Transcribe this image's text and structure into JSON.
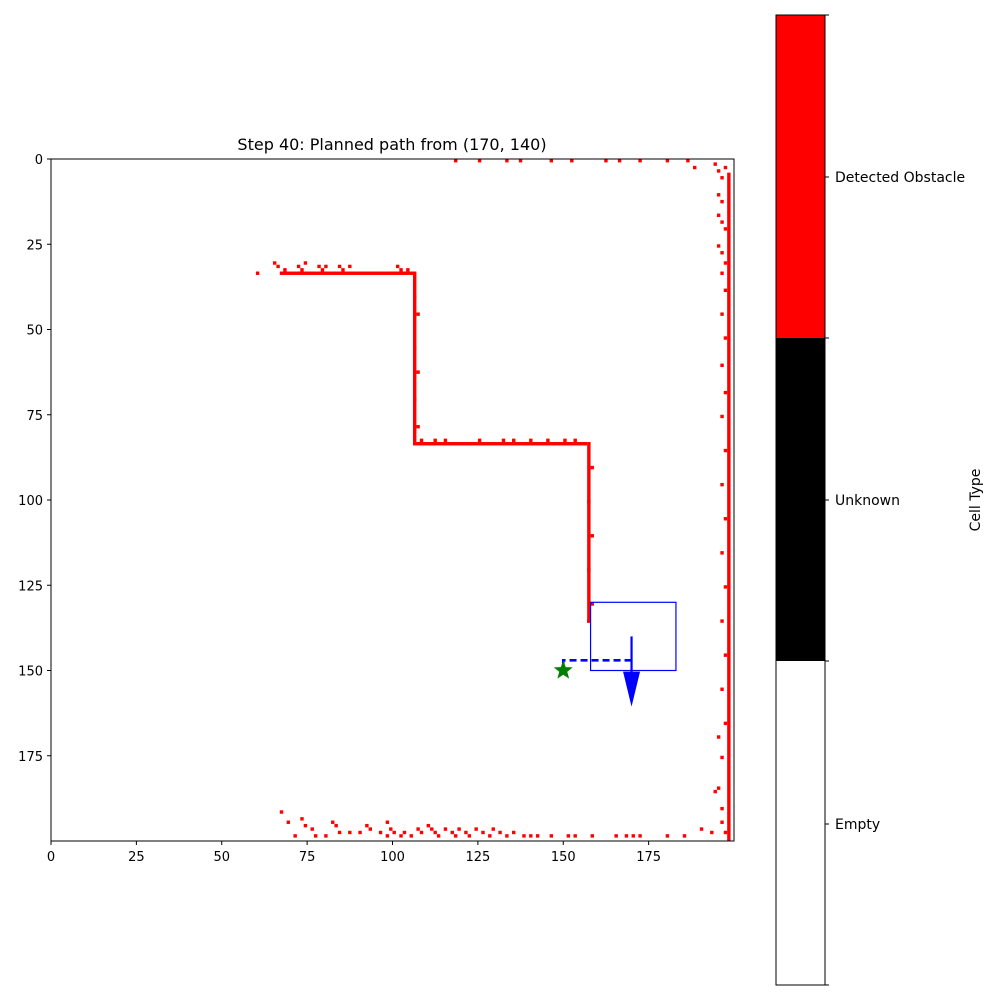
{
  "chart_data": {
    "type": "heatmap",
    "title": "Step 40: Planned path from (170, 140)",
    "xlim": [
      0,
      200
    ],
    "ylim": [
      200,
      0
    ],
    "x_ticks": [
      0,
      25,
      50,
      75,
      100,
      125,
      150,
      175
    ],
    "y_ticks": [
      0,
      25,
      50,
      75,
      100,
      125,
      150,
      175
    ],
    "grid": false,
    "colormap": {
      "label": "Cell Type",
      "categories": [
        {
          "name": "Empty",
          "color": "#ffffff"
        },
        {
          "name": "Unknown",
          "color": "#000000"
        },
        {
          "name": "Detected Obstacle",
          "color": "#ff0000"
        }
      ]
    },
    "obstacle_segments": [
      {
        "x1": 67,
        "y1": 33,
        "x2": 106,
        "y2": 33
      },
      {
        "x1": 106,
        "y1": 33,
        "x2": 106,
        "y2": 83
      },
      {
        "x1": 106,
        "y1": 83,
        "x2": 157,
        "y2": 83
      },
      {
        "x1": 157,
        "y1": 83,
        "x2": 157,
        "y2": 136
      },
      {
        "x1": 198,
        "y1": 4,
        "x2": 198,
        "y2": 200
      }
    ],
    "obstacle_points": [
      [
        60,
        33
      ],
      [
        65,
        30
      ],
      [
        66,
        31
      ],
      [
        68,
        32
      ],
      [
        72,
        31
      ],
      [
        73,
        32
      ],
      [
        74,
        30
      ],
      [
        78,
        31
      ],
      [
        79,
        32
      ],
      [
        80,
        31
      ],
      [
        84,
        31
      ],
      [
        85,
        32
      ],
      [
        87,
        31
      ],
      [
        101,
        31
      ],
      [
        102,
        32
      ],
      [
        104,
        32
      ],
      [
        106,
        40
      ],
      [
        107,
        45
      ],
      [
        106,
        55
      ],
      [
        107,
        62
      ],
      [
        106,
        70
      ],
      [
        107,
        78
      ],
      [
        108,
        82
      ],
      [
        112,
        82
      ],
      [
        115,
        82
      ],
      [
        125,
        82
      ],
      [
        132,
        82
      ],
      [
        135,
        82
      ],
      [
        140,
        82
      ],
      [
        145,
        82
      ],
      [
        150,
        82
      ],
      [
        153,
        82
      ],
      [
        158,
        90
      ],
      [
        157,
        100
      ],
      [
        158,
        110
      ],
      [
        157,
        120
      ],
      [
        158,
        130
      ],
      [
        157,
        135
      ],
      [
        118,
        0
      ],
      [
        125,
        0
      ],
      [
        133,
        0
      ],
      [
        137,
        0
      ],
      [
        146,
        0
      ],
      [
        152,
        0
      ],
      [
        162,
        0
      ],
      [
        166,
        0
      ],
      [
        172,
        0
      ],
      [
        180,
        0
      ],
      [
        186,
        0
      ],
      [
        188,
        2
      ],
      [
        194,
        1
      ],
      [
        195,
        3
      ],
      [
        196,
        5
      ],
      [
        197,
        2
      ],
      [
        195,
        10
      ],
      [
        196,
        12
      ],
      [
        195,
        16
      ],
      [
        196,
        18
      ],
      [
        197,
        20
      ],
      [
        195,
        25
      ],
      [
        196,
        27
      ],
      [
        197,
        30
      ],
      [
        196,
        33
      ],
      [
        197,
        38
      ],
      [
        196,
        45
      ],
      [
        197,
        52
      ],
      [
        196,
        60
      ],
      [
        197,
        68
      ],
      [
        196,
        75
      ],
      [
        197,
        85
      ],
      [
        196,
        95
      ],
      [
        197,
        105
      ],
      [
        196,
        115
      ],
      [
        197,
        125
      ],
      [
        196,
        135
      ],
      [
        197,
        145
      ],
      [
        196,
        155
      ],
      [
        197,
        165
      ],
      [
        195,
        169
      ],
      [
        196,
        175
      ],
      [
        195,
        184
      ],
      [
        194,
        185
      ],
      [
        196,
        190
      ],
      [
        196,
        194
      ],
      [
        197,
        197
      ],
      [
        193,
        197
      ],
      [
        190,
        196
      ],
      [
        67,
        191
      ],
      [
        69,
        194
      ],
      [
        71,
        198
      ],
      [
        73,
        193
      ],
      [
        74,
        195
      ],
      [
        76,
        196
      ],
      [
        77,
        198
      ],
      [
        80,
        198
      ],
      [
        82,
        194
      ],
      [
        83,
        195
      ],
      [
        84,
        197
      ],
      [
        87,
        197
      ],
      [
        90,
        197
      ],
      [
        92,
        195
      ],
      [
        93,
        196
      ],
      [
        96,
        197
      ],
      [
        98,
        198
      ],
      [
        98,
        194
      ],
      [
        99,
        196
      ],
      [
        100,
        197
      ],
      [
        102,
        198
      ],
      [
        103,
        197
      ],
      [
        105,
        198
      ],
      [
        107,
        196
      ],
      [
        108,
        197
      ],
      [
        110,
        195
      ],
      [
        111,
        196
      ],
      [
        112,
        197
      ],
      [
        113,
        198
      ],
      [
        115,
        196
      ],
      [
        117,
        197
      ],
      [
        118,
        198
      ],
      [
        119,
        196
      ],
      [
        121,
        197
      ],
      [
        122,
        198
      ],
      [
        124,
        196
      ],
      [
        126,
        197
      ],
      [
        128,
        198
      ],
      [
        129,
        196
      ],
      [
        131,
        197
      ],
      [
        133,
        198
      ],
      [
        135,
        197
      ],
      [
        138,
        198
      ],
      [
        140,
        198
      ],
      [
        142,
        198
      ],
      [
        146,
        198
      ],
      [
        151,
        198
      ],
      [
        153,
        198
      ],
      [
        158,
        198
      ],
      [
        165,
        198
      ],
      [
        168,
        198
      ],
      [
        170,
        198
      ],
      [
        172,
        198
      ],
      [
        180,
        198
      ],
      [
        185,
        198
      ]
    ],
    "planned_path": [
      [
        170,
        147
      ],
      [
        150,
        147
      ],
      [
        150,
        150
      ]
    ],
    "goal_marker": {
      "x": 150,
      "y": 150
    },
    "robot": {
      "x": 170,
      "y": 140,
      "heading_dy": 20
    },
    "view_box": {
      "x": 158,
      "y": 130,
      "w": 25,
      "h": 20
    },
    "colors": {
      "obstacle": "#ff0000",
      "path": "#0000ff",
      "goal": "#008000",
      "robot": "#0000ff"
    }
  }
}
